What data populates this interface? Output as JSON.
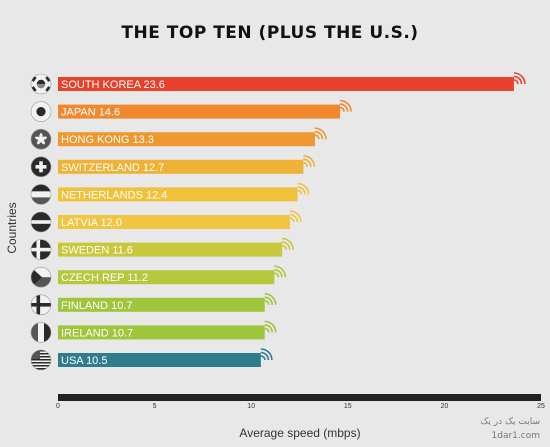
{
  "chart_data": {
    "type": "bar",
    "orientation": "horizontal",
    "title": "THE TOP TEN (PLUS THE U.S.)",
    "xlabel": "Average speed (mbps)",
    "ylabel": "Countries",
    "xlim": [
      0,
      25
    ],
    "xticks": [
      0,
      5,
      10,
      15,
      20,
      25
    ],
    "grid": false,
    "categories": [
      "SOUTH KOREA",
      "JAPAN",
      "HONG KONG",
      "SWITZERLAND",
      "NETHERLANDS",
      "LATVIA",
      "SWEDEN",
      "CZECH REP",
      "FINLAND",
      "IRELAND",
      "USA"
    ],
    "values": [
      23.6,
      14.6,
      13.3,
      12.7,
      12.4,
      12.0,
      11.6,
      11.2,
      10.7,
      10.7,
      10.5
    ],
    "bar_colors": [
      "#e8422c",
      "#f0882d",
      "#ee982f",
      "#eeb236",
      "#f0c23c",
      "#f0c53f",
      "#c9c73b",
      "#b5c73b",
      "#9fc53b",
      "#9fc53b",
      "#2e7c8e"
    ],
    "flag_icons": [
      "south-korea-flag-icon",
      "japan-flag-icon",
      "hong-kong-flag-icon",
      "switzerland-flag-icon",
      "netherlands-flag-icon",
      "latvia-flag-icon",
      "sweden-flag-icon",
      "czech-rep-flag-icon",
      "finland-flag-icon",
      "ireland-flag-icon",
      "usa-flag-icon"
    ]
  },
  "watermark": {
    "line1": "سایت یک در یک",
    "line2": "1dar1.com"
  }
}
